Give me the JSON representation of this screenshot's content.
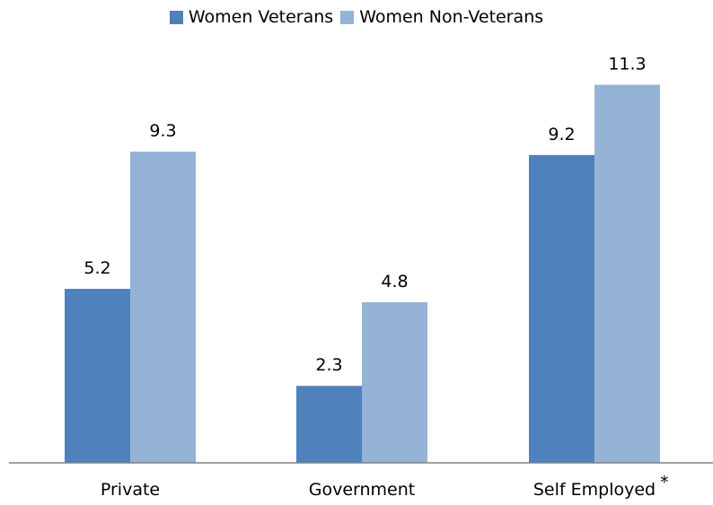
{
  "chart_data": {
    "type": "bar",
    "categories": [
      "Private",
      "Government",
      "Self Employed"
    ],
    "category_note": {
      "index": 2,
      "mark": "*"
    },
    "series": [
      {
        "name": "Women Veterans",
        "values": [
          5.2,
          2.3,
          9.2
        ],
        "color": "#4f81bd"
      },
      {
        "name": "Women Non-Veterans",
        "values": [
          9.3,
          4.8,
          11.3
        ],
        "color": "#95b3d7"
      }
    ],
    "ylim": [
      0,
      12.0
    ],
    "grid": false,
    "legend": "top-center",
    "axis_color": "#808080"
  }
}
